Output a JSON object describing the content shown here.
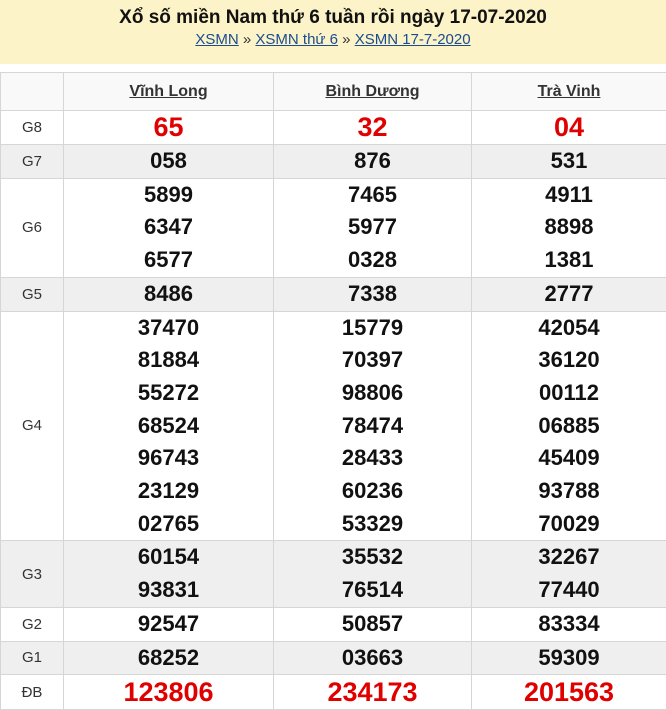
{
  "header": {
    "title": "Xổ số miền Nam thứ 6 tuần rồi ngày 17-07-2020",
    "breadcrumb": [
      {
        "label": "XSMN"
      },
      {
        "label": "XSMN thứ 6"
      },
      {
        "label": "XSMN 17-7-2020"
      }
    ],
    "separator": "»"
  },
  "table": {
    "columns": [
      "Vĩnh Long",
      "Bình Dương",
      "Trà Vinh"
    ],
    "rows": [
      {
        "label": "G8",
        "values": [
          [
            "65"
          ],
          [
            "32"
          ],
          [
            "04"
          ]
        ]
      },
      {
        "label": "G7",
        "values": [
          [
            "058"
          ],
          [
            "876"
          ],
          [
            "531"
          ]
        ]
      },
      {
        "label": "G6",
        "values": [
          [
            "5899",
            "6347",
            "6577"
          ],
          [
            "7465",
            "5977",
            "0328"
          ],
          [
            "4911",
            "8898",
            "1381"
          ]
        ]
      },
      {
        "label": "G5",
        "values": [
          [
            "8486"
          ],
          [
            "7338"
          ],
          [
            "2777"
          ]
        ]
      },
      {
        "label": "G4",
        "values": [
          [
            "37470",
            "81884",
            "55272",
            "68524",
            "96743",
            "23129",
            "02765"
          ],
          [
            "15779",
            "70397",
            "98806",
            "78474",
            "28433",
            "60236",
            "53329"
          ],
          [
            "42054",
            "36120",
            "00112",
            "06885",
            "45409",
            "93788",
            "70029"
          ]
        ]
      },
      {
        "label": "G3",
        "values": [
          [
            "60154",
            "93831"
          ],
          [
            "35532",
            "76514"
          ],
          [
            "32267",
            "77440"
          ]
        ]
      },
      {
        "label": "G2",
        "values": [
          [
            "92547"
          ],
          [
            "50857"
          ],
          [
            "83334"
          ]
        ]
      },
      {
        "label": "G1",
        "values": [
          [
            "68252"
          ],
          [
            "03663"
          ],
          [
            "59309"
          ]
        ]
      },
      {
        "label": "ĐB",
        "values": [
          [
            "123806"
          ],
          [
            "234173"
          ],
          [
            "201563"
          ]
        ]
      }
    ]
  },
  "colors": {
    "header_bg": "#fcf3c8",
    "special_prize": "#e00000",
    "alt_row": "#efefef"
  }
}
